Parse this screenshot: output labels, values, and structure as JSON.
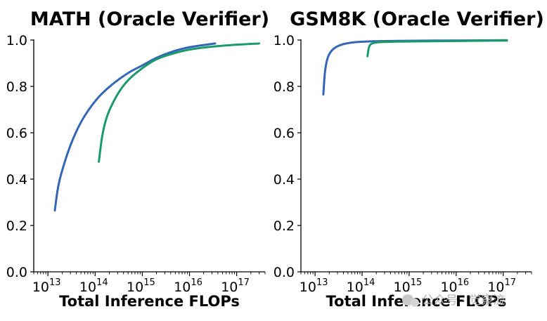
{
  "chart_data": [
    {
      "type": "line",
      "title": "MATH (Oracle Verifier)",
      "xlabel": "Total Inference FLOPs",
      "ylabel": "",
      "xscale": "log",
      "xlim": [
        5000000000000.0,
        4e+17
      ],
      "ylim": [
        0,
        1.0
      ],
      "xticks": [
        "10",
        "10",
        "10",
        "10",
        "10"
      ],
      "xtick_exponents": [
        "13",
        "14",
        "15",
        "16",
        "17"
      ],
      "xtick_values": [
        10000000000000.0,
        100000000000000.0,
        1000000000000000.0,
        1e+16,
        1e+17
      ],
      "yticks": [
        "0.0",
        "0.2",
        "0.4",
        "0.6",
        "0.8",
        "1.0"
      ],
      "ytick_values": [
        0,
        0.2,
        0.4,
        0.6,
        0.8,
        1.0
      ],
      "grid": false,
      "series": [
        {
          "color": "#3366b5",
          "x": [
            14000000000000.0,
            16000000000000.0,
            20000000000000.0,
            30000000000000.0,
            50000000000000.0,
            100000000000000.0,
            200000000000000.0,
            500000000000000.0,
            1000000000000000.0,
            2000000000000000.0,
            5000000000000000.0,
            1e+16,
            3.5e+16
          ],
          "y": [
            0.265,
            0.36,
            0.44,
            0.55,
            0.65,
            0.74,
            0.8,
            0.86,
            0.89,
            0.925,
            0.955,
            0.97,
            0.985
          ]
        },
        {
          "color": "#1a9a6a",
          "x": [
            120000000000000.0,
            140000000000000.0,
            180000000000000.0,
            300000000000000.0,
            500000000000000.0,
            1000000000000000.0,
            2000000000000000.0,
            5000000000000000.0,
            1e+16,
            3e+16,
            1e+17,
            3e+17
          ],
          "y": [
            0.475,
            0.59,
            0.68,
            0.77,
            0.83,
            0.88,
            0.92,
            0.945,
            0.96,
            0.972,
            0.98,
            0.985
          ]
        }
      ]
    },
    {
      "type": "line",
      "title": "GSM8K (Oracle Verifier)",
      "xlabel": "Total Inference FLOPs",
      "ylabel": "",
      "xscale": "log",
      "xlim": [
        5000000000000.0,
        4e+17
      ],
      "ylim": [
        0,
        1.0
      ],
      "xticks": [
        "10",
        "10",
        "10",
        "10",
        "10"
      ],
      "xtick_exponents": [
        "13",
        "14",
        "15",
        "16",
        "17"
      ],
      "xtick_values": [
        10000000000000.0,
        100000000000000.0,
        1000000000000000.0,
        1e+16,
        1e+17
      ],
      "yticks": [
        "0.0",
        "0.2",
        "0.4",
        "0.6",
        "0.8",
        "1.0"
      ],
      "ytick_values": [
        0,
        0.2,
        0.4,
        0.6,
        0.8,
        1.0
      ],
      "grid": false,
      "series": [
        {
          "color": "#3366b5",
          "x": [
            15000000000000.0,
            16000000000000.0,
            18000000000000.0,
            22000000000000.0,
            30000000000000.0,
            50000000000000.0,
            100000000000000.0,
            300000000000000.0,
            1000000000000000.0,
            1e+16,
            1.2e+17
          ],
          "y": [
            0.765,
            0.86,
            0.92,
            0.955,
            0.975,
            0.988,
            0.993,
            0.996,
            0.997,
            0.998,
            0.999
          ]
        },
        {
          "color": "#1a9a6a",
          "x": [
            130000000000000.0,
            140000000000000.0,
            160000000000000.0,
            200000000000000.0,
            300000000000000.0,
            1000000000000000.0,
            1e+16,
            1.2e+17
          ],
          "y": [
            0.93,
            0.975,
            0.985,
            0.99,
            0.992,
            0.994,
            0.996,
            0.998
          ]
        }
      ]
    }
  ],
  "watermark": {
    "text": "公众号 · 觉察流",
    "icon": "wechat-icon"
  }
}
